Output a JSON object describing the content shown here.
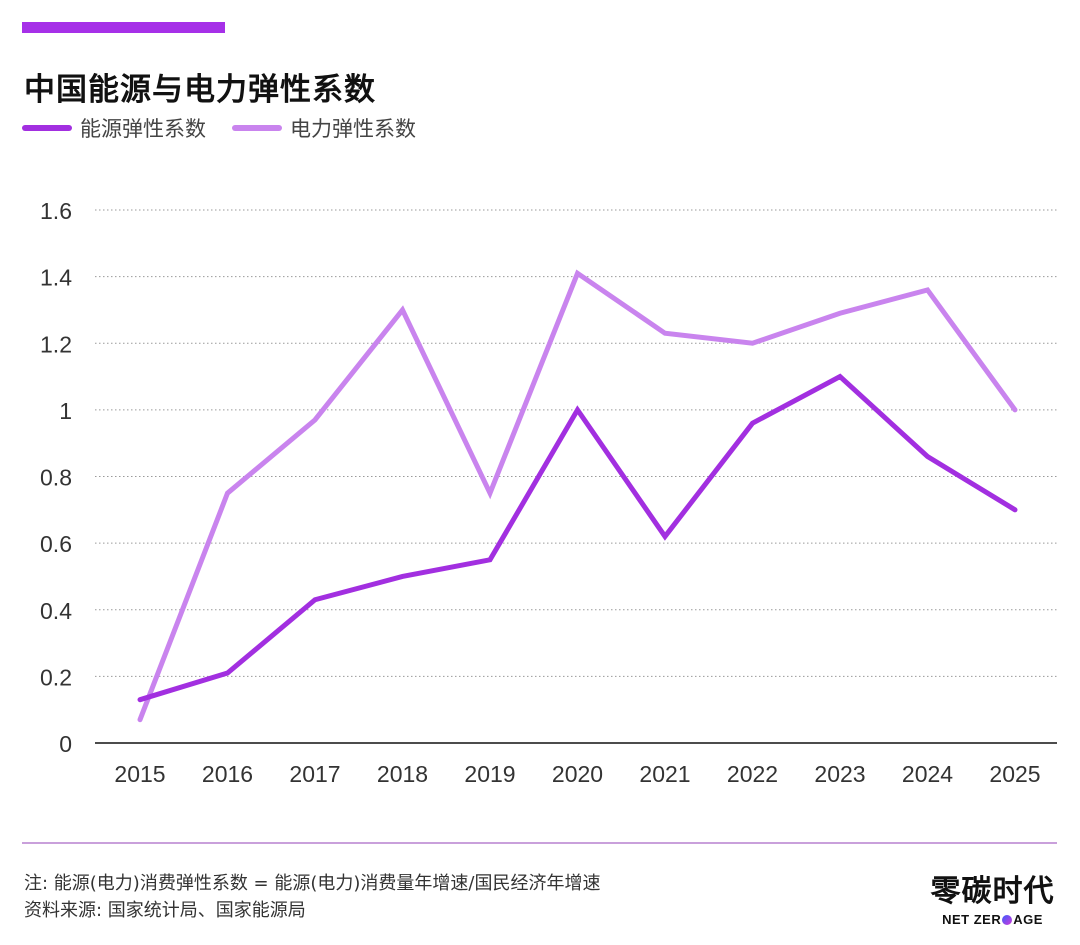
{
  "header": {
    "accent_color": "#A630E8",
    "title": "中国能源与电力弹性系数"
  },
  "legend": [
    {
      "label": "能源弹性系数",
      "color": "#A22FE0"
    },
    {
      "label": "电力弹性系数",
      "color": "#C984EE"
    }
  ],
  "chart_data": {
    "type": "line",
    "title": "中国能源与电力弹性系数",
    "xlabel": "",
    "ylabel": "",
    "categories": [
      "2015",
      "2016",
      "2017",
      "2018",
      "2019",
      "2020",
      "2021",
      "2022",
      "2023",
      "2024",
      "2025"
    ],
    "series": [
      {
        "name": "能源弹性系数",
        "color": "#A22FE0",
        "values": [
          0.13,
          0.21,
          0.43,
          0.5,
          0.55,
          1.0,
          0.62,
          0.96,
          1.1,
          0.86,
          0.7
        ]
      },
      {
        "name": "电力弹性系数",
        "color": "#C984EE",
        "values": [
          0.07,
          0.75,
          0.97,
          1.3,
          0.75,
          1.41,
          1.23,
          1.2,
          1.29,
          1.36,
          1.0
        ]
      }
    ],
    "ylim": [
      0,
      1.6
    ],
    "yticks": [
      "0",
      "0.2",
      "0.4",
      "0.6",
      "0.8",
      "1",
      "1.2",
      "1.4",
      "1.6"
    ],
    "ytick_values": [
      0,
      0.2,
      0.4,
      0.6,
      0.8,
      1.0,
      1.2,
      1.4,
      1.6
    ],
    "grid": true,
    "legend_position": "top-left"
  },
  "footer": {
    "note": "注: 能源(电力)消费弹性系数 = 能源(电力)消费量年增速/国民经济年增速",
    "source": "资料来源: 国家统计局、国家能源局",
    "logo_cn": "零碳时代",
    "logo_en_left": "NET ZER",
    "logo_en_right": "AGE"
  }
}
